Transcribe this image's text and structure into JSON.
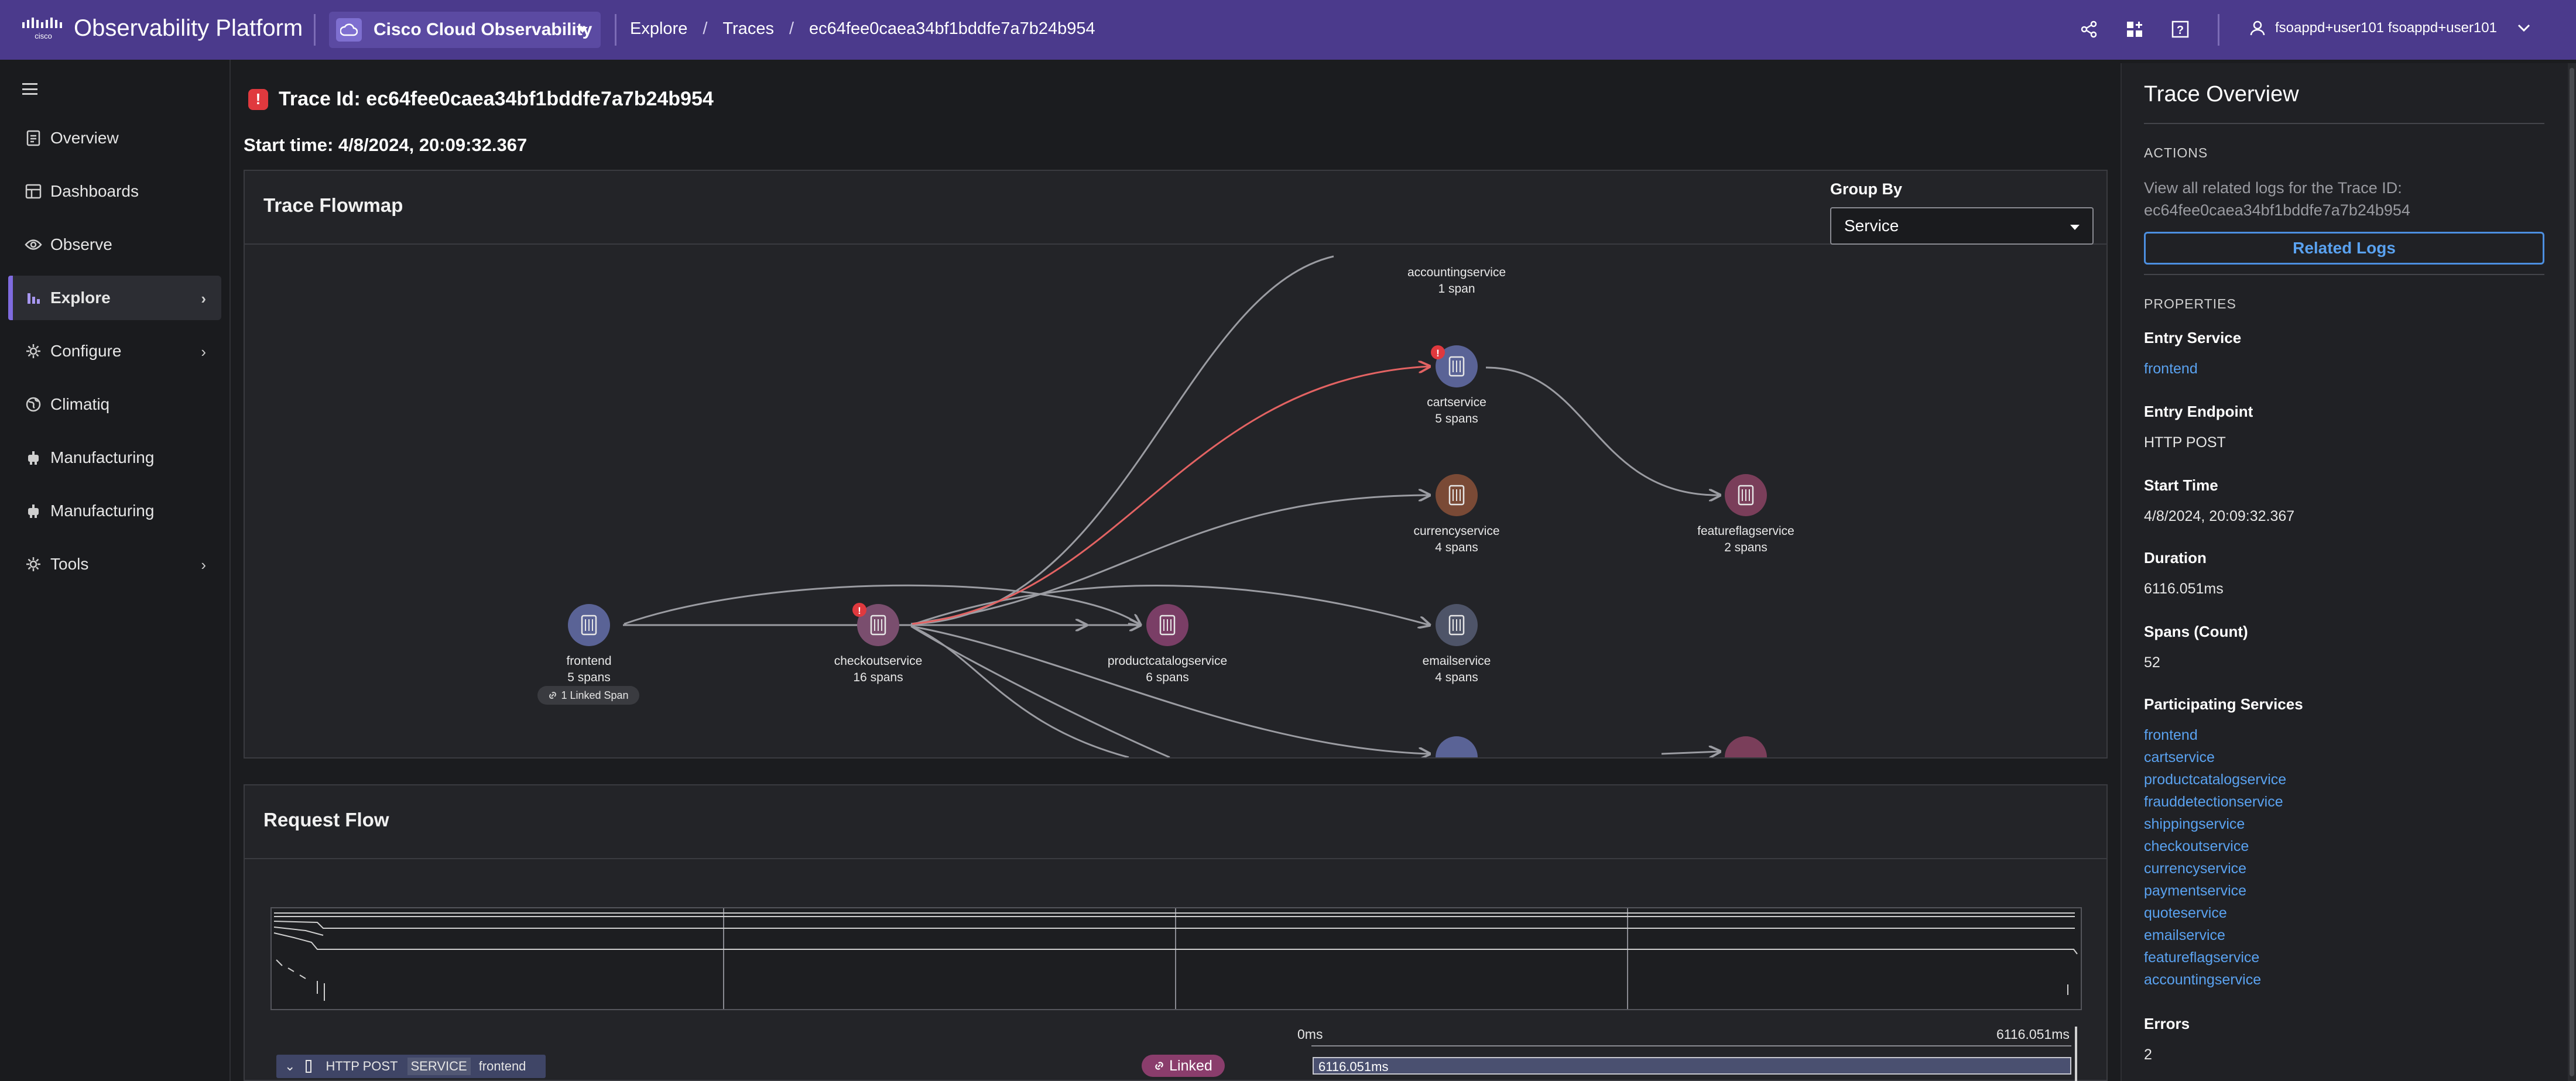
{
  "header": {
    "app_title": "Observability Platform",
    "product": "Cisco Cloud Observability",
    "breadcrumb": [
      "Explore",
      "Traces",
      "ec64fee0caea34bf1bddfe7a7b24b954"
    ],
    "user": "fsoappd+user101 fsoappd+user101",
    "icons": [
      "share-icon",
      "dashboard-add-icon",
      "help-icon",
      "user-icon",
      "chevron-down-icon"
    ]
  },
  "sidebar": {
    "items": [
      {
        "label": "Overview",
        "icon": "document-icon"
      },
      {
        "label": "Dashboards",
        "icon": "dashboard-icon"
      },
      {
        "label": "Observe",
        "icon": "eye-icon"
      },
      {
        "label": "Explore",
        "icon": "bar-chart-icon",
        "active": true
      },
      {
        "label": "Configure",
        "icon": "gear-icon"
      },
      {
        "label": "Climatiq",
        "icon": "globe-icon"
      },
      {
        "label": "Manufacturing",
        "icon": "robot-icon"
      },
      {
        "label": "Manufacturing",
        "icon": "robot-icon"
      },
      {
        "label": "Tools",
        "icon": "gear-icon"
      }
    ]
  },
  "trace": {
    "id_label": "Trace Id: ec64fee0caea34bf1bddfe7a7b24b954",
    "start_label": "Start time: 4/8/2024, 20:09:32.367"
  },
  "flowmap": {
    "title": "Trace Flowmap",
    "group_by_label": "Group By",
    "group_by_value": "Service",
    "linked_pill": "1 Linked Span",
    "nodes": [
      {
        "name": "frontend",
        "spans": "5 spans"
      },
      {
        "name": "checkoutservice",
        "spans": "16 spans",
        "error": true
      },
      {
        "name": "productcatalogservice",
        "spans": "6 spans"
      },
      {
        "name": "accountingservice",
        "spans": "1 span"
      },
      {
        "name": "cartservice",
        "spans": "5 spans",
        "error": true
      },
      {
        "name": "currencyservice",
        "spans": "4 spans"
      },
      {
        "name": "emailservice",
        "spans": "4 spans"
      },
      {
        "name": "featureflagservice",
        "spans": "2 spans"
      }
    ]
  },
  "request_flow": {
    "title": "Request Flow",
    "axis_start": "0ms",
    "axis_end": "6116.051ms",
    "row": {
      "method": "HTTP POST",
      "tag": "SERVICE",
      "service": "frontend",
      "linked": "Linked",
      "duration": "6116.051ms"
    }
  },
  "overview": {
    "title": "Trace Overview",
    "actions_heading": "ACTIONS",
    "actions_text_1": "View all related logs for the Trace ID:",
    "actions_text_2": "ec64fee0caea34bf1bddfe7a7b24b954",
    "related_logs": "Related Logs",
    "properties_heading": "PROPERTIES",
    "entry_service_label": "Entry Service",
    "entry_service": "frontend",
    "entry_endpoint_label": "Entry Endpoint",
    "entry_endpoint": "HTTP POST",
    "start_time_label": "Start Time",
    "start_time": "4/8/2024, 20:09:32.367",
    "duration_label": "Duration",
    "duration": "6116.051ms",
    "spans_label": "Spans (Count)",
    "spans": "52",
    "participating_label": "Participating Services",
    "services": [
      "frontend",
      "cartservice",
      "productcatalogservice",
      "frauddetectionservice",
      "shippingservice",
      "checkoutservice",
      "currencyservice",
      "paymentservice",
      "quoteservice",
      "emailservice",
      "featureflagservice",
      "accountingservice"
    ],
    "errors_label": "Errors",
    "errors": "2"
  },
  "colors": {
    "header": "#4b3a8c",
    "accent": "#7f6bdf",
    "link": "#5aa2f0",
    "error": "#e0393e"
  }
}
